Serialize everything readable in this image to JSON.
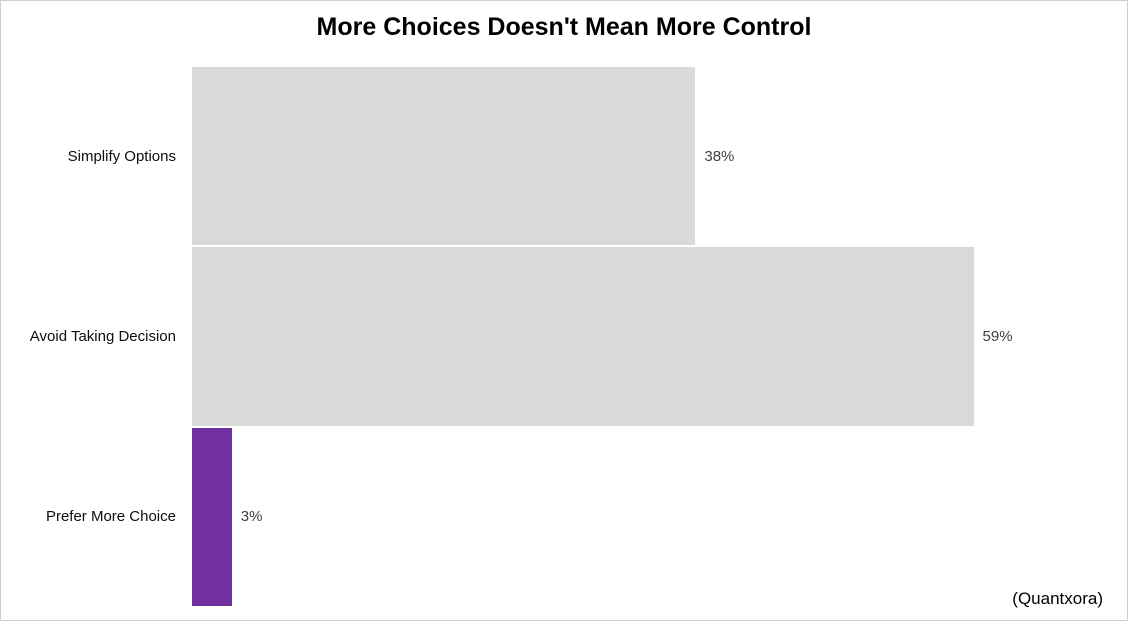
{
  "chart_data": {
    "type": "bar",
    "orientation": "horizontal",
    "title": "More Choices Doesn't Mean More Control",
    "categories": [
      "Simplify Options",
      "Avoid Taking Decision",
      "Prefer More Choice"
    ],
    "values": [
      38,
      59,
      3
    ],
    "value_labels": [
      "38%",
      "59%",
      "3%"
    ],
    "bar_colors": [
      "#d9d9d9",
      "#d9d9d9",
      "#7030a0"
    ],
    "xlabel": "",
    "ylabel": "",
    "axis_max_estimate": 69,
    "grid": false,
    "legend": false
  },
  "attribution": "(Quantxora)",
  "colors": {
    "bar_default": "#d9d9d9",
    "bar_accent": "#7030a0",
    "title_text": "#000000",
    "category_label_text": "#0d0d0d",
    "value_label_text": "#404040",
    "frame_border": "#d0cece",
    "background": "#ffffff"
  }
}
